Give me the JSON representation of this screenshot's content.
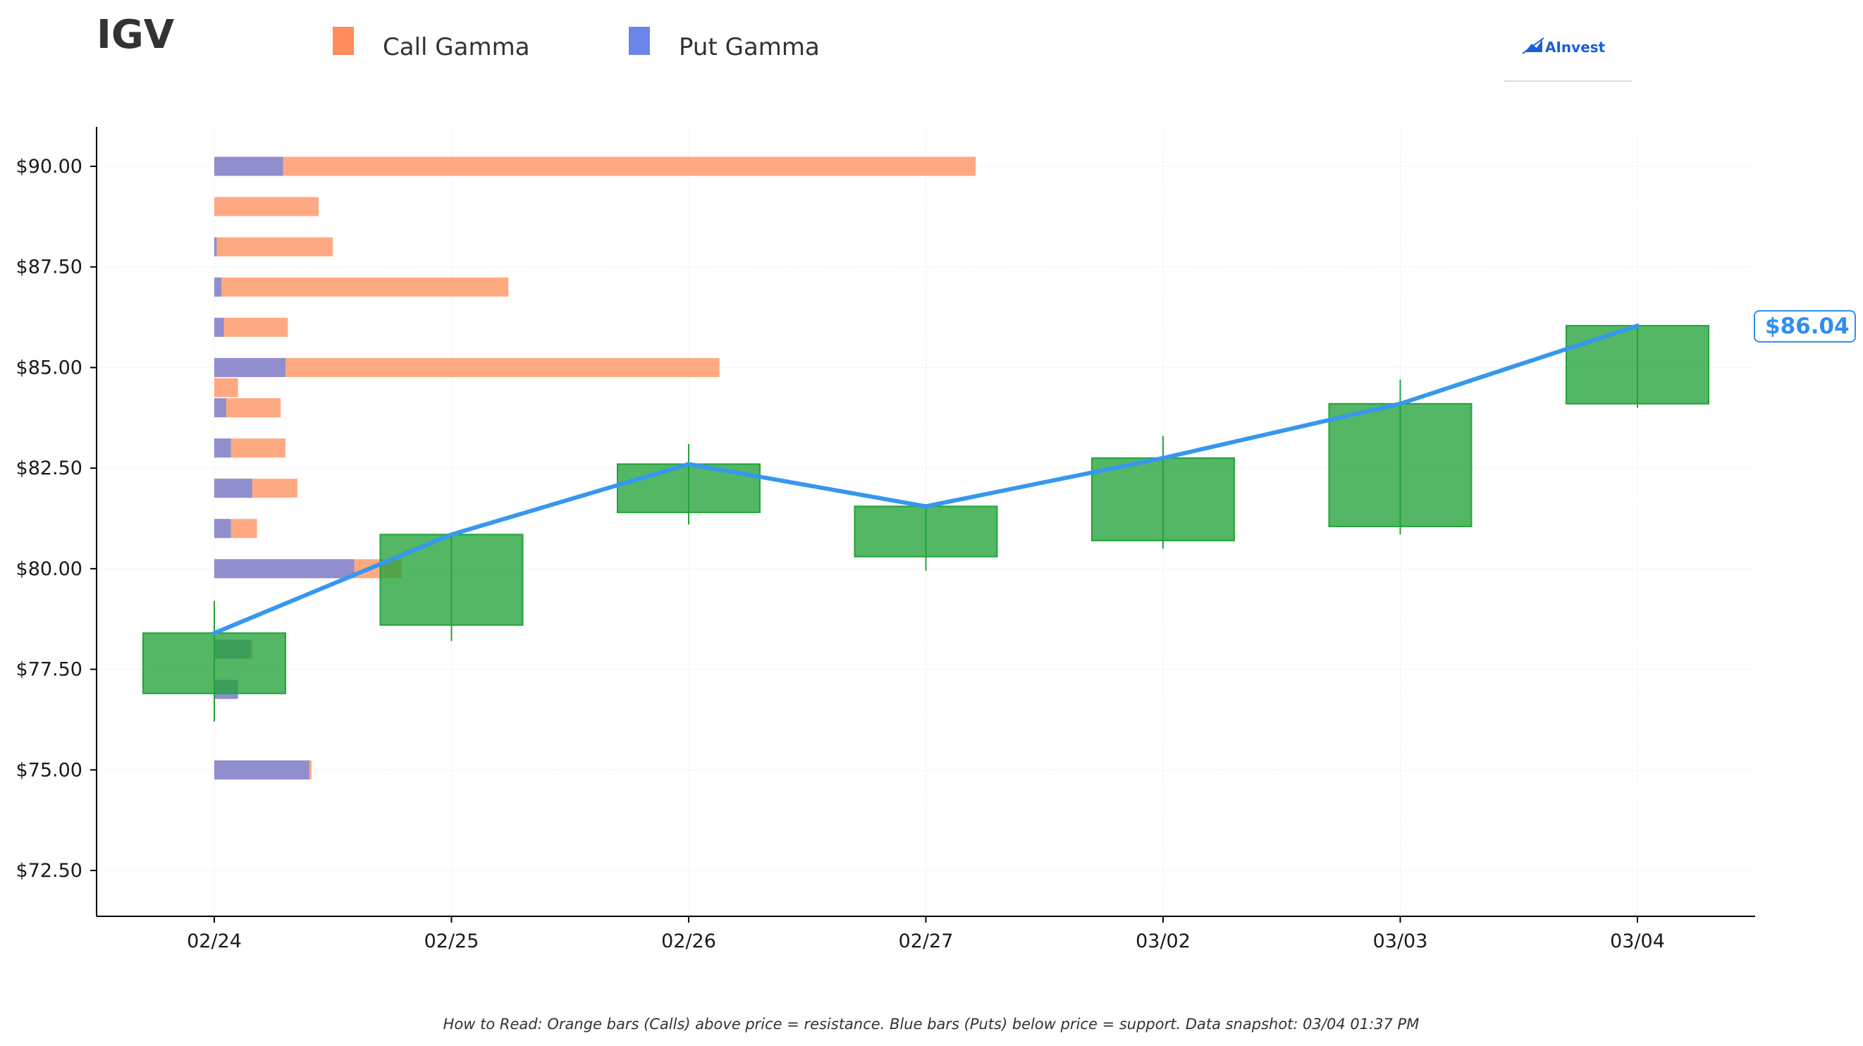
{
  "ticker": "IGV",
  "brand": {
    "name": "AInvest",
    "color": "#1a5fd6"
  },
  "legend": [
    {
      "label": "Call Gamma",
      "color": "#ff8c5a"
    },
    {
      "label": "Put Gamma",
      "color": "#6b86e8"
    }
  ],
  "footnote": "How to Read: Orange bars (Calls) above price = resistance. Blue bars (Puts) below price = support. Data snapshot: 03/04 01:37 PM",
  "price_tag": {
    "label": "$86.04",
    "value": 86.04,
    "color": "#2e8ff0"
  },
  "colors": {
    "call_bar": "#ff8c5a",
    "put_bar": "#6b86e8",
    "candle": "#22a33a",
    "price_line": "#3797ee"
  },
  "chart_data": {
    "type": "candlestick",
    "x_categories": [
      "02/24",
      "02/25",
      "02/26",
      "02/27",
      "03/02",
      "03/03",
      "03/04"
    ],
    "y_ticks": [
      {
        "value": 90.0,
        "label": "$90.00"
      },
      {
        "value": 87.5,
        "label": "$87.50"
      },
      {
        "value": 85.0,
        "label": "$85.00"
      },
      {
        "value": 82.5,
        "label": "$82.50"
      },
      {
        "value": 80.0,
        "label": "$80.00"
      },
      {
        "value": 77.5,
        "label": "$77.50"
      },
      {
        "value": 75.0,
        "label": "$75.00"
      },
      {
        "value": 72.5,
        "label": "$72.50"
      }
    ],
    "ylim": [
      71.4,
      91.0
    ],
    "grid": true,
    "candles": [
      {
        "date": "02/24",
        "open": 76.9,
        "close": 78.4,
        "low": 76.2,
        "high": 79.2
      },
      {
        "date": "02/25",
        "open": 78.6,
        "close": 80.85,
        "low": 78.2,
        "high": 80.85
      },
      {
        "date": "02/26",
        "open": 81.4,
        "close": 82.6,
        "low": 81.1,
        "high": 83.1
      },
      {
        "date": "02/27",
        "open": 80.3,
        "close": 81.55,
        "low": 79.95,
        "high": 81.55
      },
      {
        "date": "03/02",
        "open": 80.7,
        "close": 82.75,
        "low": 80.5,
        "high": 83.3
      },
      {
        "date": "03/03",
        "open": 81.05,
        "close": 84.1,
        "low": 80.85,
        "high": 84.7
      },
      {
        "date": "03/04",
        "open": 84.1,
        "close": 86.04,
        "low": 84.0,
        "high": 86.04
      }
    ],
    "price_line": [
      {
        "date": "02/24",
        "value": 78.4
      },
      {
        "date": "02/25",
        "value": 80.85
      },
      {
        "date": "02/26",
        "value": 82.6
      },
      {
        "date": "02/27",
        "value": 81.55
      },
      {
        "date": "03/02",
        "value": 82.75
      },
      {
        "date": "03/03",
        "value": 84.1
      },
      {
        "date": "03/04",
        "value": 86.04
      }
    ],
    "gamma_unit_note": "bar lengths in x-category units measured from 02/24",
    "gamma_levels": [
      {
        "strike": 90.0,
        "put": 0.29,
        "call": 3.21
      },
      {
        "strike": 89.0,
        "put": 0.0,
        "call": 0.44
      },
      {
        "strike": 88.0,
        "put": 0.01,
        "call": 0.5
      },
      {
        "strike": 87.0,
        "put": 0.03,
        "call": 1.24
      },
      {
        "strike": 86.0,
        "put": 0.04,
        "call": 0.31
      },
      {
        "strike": 85.0,
        "put": 0.3,
        "call": 2.13
      },
      {
        "strike": 84.5,
        "put": 0.0,
        "call": 0.1
      },
      {
        "strike": 84.0,
        "put": 0.05,
        "call": 0.28
      },
      {
        "strike": 83.0,
        "put": 0.07,
        "call": 0.3
      },
      {
        "strike": 82.0,
        "put": 0.16,
        "call": 0.35
      },
      {
        "strike": 81.0,
        "put": 0.07,
        "call": 0.18
      },
      {
        "strike": 80.0,
        "put": 0.59,
        "call": 0.79
      },
      {
        "strike": 78.0,
        "put": 0.15,
        "call": 0.16
      },
      {
        "strike": 77.0,
        "put": 0.1,
        "call": 0.1
      },
      {
        "strike": 75.0,
        "put": 0.4,
        "call": 0.41
      }
    ]
  }
}
